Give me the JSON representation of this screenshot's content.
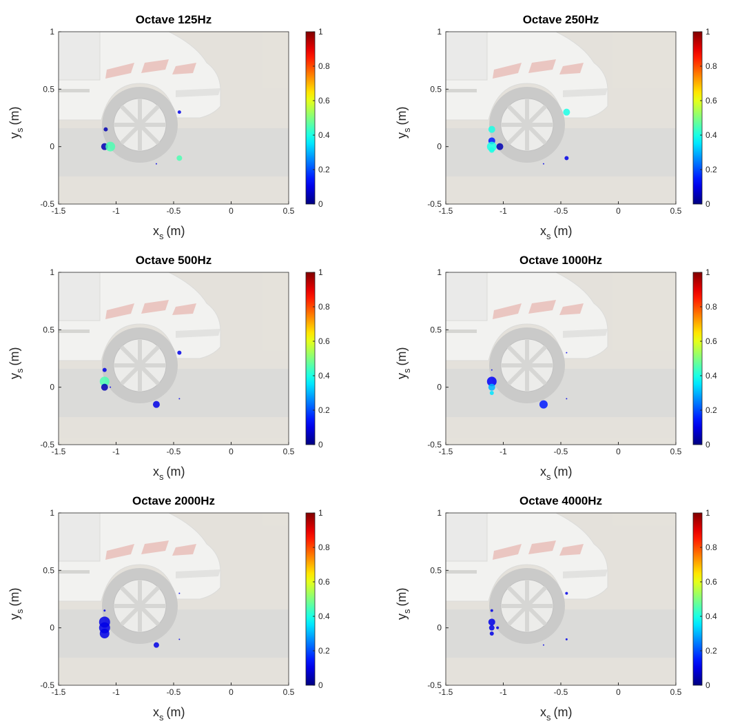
{
  "chart_data": [
    {
      "type": "scatter",
      "title": "Octave 125Hz",
      "xlabel": {
        "main": "x",
        "sub": "s",
        "unit": "(m)"
      },
      "ylabel": {
        "main": "y",
        "sub": "s",
        "unit": "(m)"
      },
      "xlim": [
        -1.5,
        0.5
      ],
      "xticks": [
        -1.5,
        -1,
        -0.5,
        0,
        0.5
      ],
      "ylim": [
        -0.5,
        1
      ],
      "yticks": [
        -0.5,
        0,
        0.5,
        1
      ],
      "clim": [
        0,
        1
      ],
      "cticks": [
        0,
        0.2,
        0.4,
        0.6,
        0.8,
        1
      ],
      "colormap": "jet",
      "x": [
        -1.09,
        -1.1,
        -1.05,
        -0.45,
        -0.45,
        -0.65
      ],
      "y": [
        0.15,
        0,
        0,
        0.3,
        -0.1,
        -0.15
      ],
      "sizes": [
        3,
        5,
        7,
        2.5,
        4,
        1
      ],
      "c": [
        0.05,
        0.05,
        0.45,
        0.1,
        0.45,
        0.1
      ]
    },
    {
      "type": "scatter",
      "title": "Octave 250Hz",
      "xlabel": {
        "main": "x",
        "sub": "s",
        "unit": "(m)"
      },
      "ylabel": {
        "main": "y",
        "sub": "s",
        "unit": "(m)"
      },
      "xlim": [
        -1.5,
        0.5
      ],
      "xticks": [
        -1.5,
        -1,
        -0.5,
        0,
        0.5
      ],
      "ylim": [
        -0.5,
        1
      ],
      "yticks": [
        -0.5,
        0,
        0.5,
        1
      ],
      "clim": [
        0,
        1
      ],
      "cticks": [
        0,
        0.2,
        0.4,
        0.6,
        0.8,
        1
      ],
      "colormap": "jet",
      "x": [
        -1.1,
        -1.1,
        -1.1,
        -1.1,
        -1.03,
        -0.45,
        -0.45,
        -0.65
      ],
      "y": [
        0.15,
        0.05,
        0,
        -0.03,
        0,
        0.3,
        -0.1,
        -0.15
      ],
      "sizes": [
        5,
        5,
        7,
        4,
        5,
        5,
        3,
        1
      ],
      "c": [
        0.4,
        0.15,
        0.4,
        0.4,
        0.05,
        0.4,
        0.1,
        0.1
      ]
    },
    {
      "type": "scatter",
      "title": "Octave 500Hz",
      "xlabel": {
        "main": "x",
        "sub": "s",
        "unit": "(m)"
      },
      "ylabel": {
        "main": "y",
        "sub": "s",
        "unit": "(m)"
      },
      "xlim": [
        -1.5,
        0.5
      ],
      "xticks": [
        -1.5,
        -1,
        -0.5,
        0,
        0.5
      ],
      "ylim": [
        -0.5,
        1
      ],
      "yticks": [
        -0.5,
        0,
        0.5,
        1
      ],
      "clim": [
        0,
        1
      ],
      "cticks": [
        0,
        0.2,
        0.4,
        0.6,
        0.8,
        1
      ],
      "colormap": "jet",
      "x": [
        -1.1,
        -1.1,
        -1.1,
        -1.05,
        -0.45,
        -0.65,
        -0.45
      ],
      "y": [
        0.15,
        0.05,
        0,
        0,
        0.3,
        -0.15,
        -0.1
      ],
      "sizes": [
        3,
        7,
        5,
        1,
        3,
        5,
        1
      ],
      "c": [
        0.1,
        0.45,
        0.05,
        0.1,
        0.1,
        0.1,
        0.1
      ]
    },
    {
      "type": "scatter",
      "title": "Octave 1000Hz",
      "xlabel": {
        "main": "x",
        "sub": "s",
        "unit": "(m)"
      },
      "ylabel": {
        "main": "y",
        "sub": "s",
        "unit": "(m)"
      },
      "xlim": [
        -1.5,
        0.5
      ],
      "xticks": [
        -1.5,
        -1,
        -0.5,
        0,
        0.5
      ],
      "ylim": [
        -0.5,
        1
      ],
      "yticks": [
        -0.5,
        0,
        0.5,
        1
      ],
      "clim": [
        0,
        1
      ],
      "cticks": [
        0,
        0.2,
        0.4,
        0.6,
        0.8,
        1
      ],
      "colormap": "jet",
      "x": [
        -1.1,
        -1.1,
        -1.1,
        -1.1,
        -0.65,
        -0.45,
        -0.45
      ],
      "y": [
        0.05,
        0,
        -0.05,
        0.15,
        -0.15,
        0.3,
        -0.1
      ],
      "sizes": [
        7,
        5,
        3,
        1,
        6,
        1,
        1
      ],
      "c": [
        0.12,
        0.3,
        0.35,
        0.1,
        0.15,
        0.1,
        0.1
      ]
    },
    {
      "type": "scatter",
      "title": "Octave 2000Hz",
      "xlabel": {
        "main": "x",
        "sub": "s",
        "unit": "(m)"
      },
      "ylabel": {
        "main": "y",
        "sub": "s",
        "unit": "(m)"
      },
      "xlim": [
        -1.5,
        0.5
      ],
      "xticks": [
        -1.5,
        -1,
        -0.5,
        0,
        0.5
      ],
      "ylim": [
        -0.5,
        1
      ],
      "yticks": [
        -0.5,
        0,
        0.5,
        1
      ],
      "clim": [
        0,
        1
      ],
      "cticks": [
        0,
        0.2,
        0.4,
        0.6,
        0.8,
        1
      ],
      "colormap": "jet",
      "x": [
        -1.1,
        -1.1,
        -1.1,
        -1.1,
        -0.65,
        -0.45,
        -0.45
      ],
      "y": [
        0.15,
        0.05,
        0,
        -0.05,
        -0.15,
        0.3,
        -0.1
      ],
      "sizes": [
        1.5,
        8,
        8,
        7,
        4,
        1,
        1
      ],
      "c": [
        0.1,
        0.1,
        0.1,
        0.1,
        0.1,
        0.1,
        0.1
      ]
    },
    {
      "type": "scatter",
      "title": "Octave 4000Hz",
      "xlabel": {
        "main": "x",
        "sub": "s",
        "unit": "(m)"
      },
      "ylabel": {
        "main": "y",
        "sub": "s",
        "unit": "(m)"
      },
      "xlim": [
        -1.5,
        0.5
      ],
      "xticks": [
        -1.5,
        -1,
        -0.5,
        0,
        0.5
      ],
      "ylim": [
        -0.5,
        1
      ],
      "yticks": [
        -0.5,
        0,
        0.5,
        1
      ],
      "clim": [
        0,
        1
      ],
      "cticks": [
        0,
        0.2,
        0.4,
        0.6,
        0.8,
        1
      ],
      "colormap": "jet",
      "x": [
        -1.1,
        -1.1,
        -1.1,
        -1.05,
        -1.1,
        -0.45,
        -0.45,
        -0.65
      ],
      "y": [
        0.15,
        0.05,
        0,
        0,
        -0.05,
        0.3,
        -0.1,
        -0.15
      ],
      "sizes": [
        2,
        5,
        4,
        2,
        3,
        2,
        1.5,
        1
      ],
      "c": [
        0.1,
        0.1,
        0.1,
        0.1,
        0.1,
        0.1,
        0.1,
        0.1
      ]
    }
  ]
}
